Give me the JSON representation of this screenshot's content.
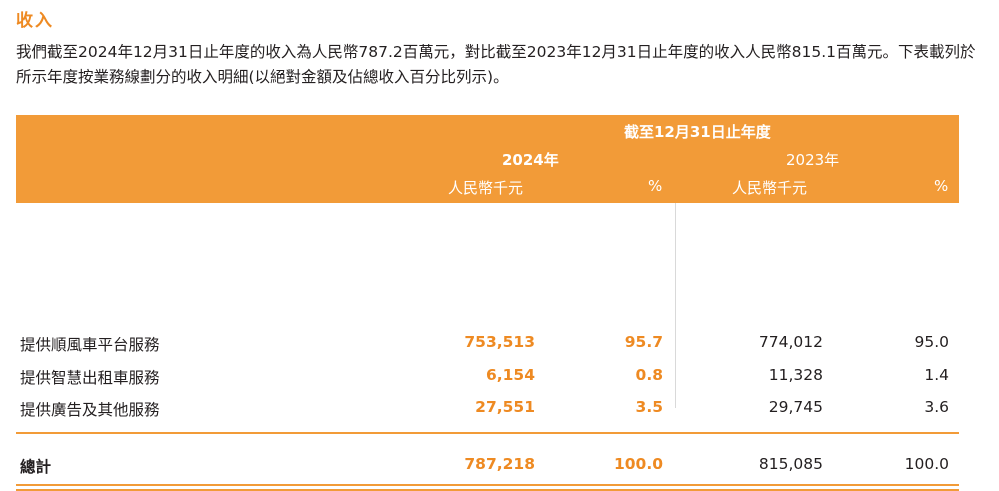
{
  "section": {
    "title": "收入",
    "intro": "我們截至2024年12月31日止年度的收入為人民幣787.2百萬元，對比截至2023年12月31日止年度的收入人民幣815.1百萬元。下表載列於所示年度按業務線劃分的收入明細(以絕對金額及佔總收入百分比列示)。"
  },
  "table": {
    "period_header": "截至12月31日止年度",
    "year_2024": "2024年",
    "year_2023": "2023年",
    "col_amount_2024": "人民幣千元",
    "col_pct_2024": "%",
    "col_amount_2023": "人民幣千元",
    "col_pct_2023": "%",
    "rows": [
      {
        "label": "提供順風車平台服務",
        "amt2024": "753,513",
        "pct2024": "95.7",
        "amt2023": "774,012",
        "pct2023": "95.0"
      },
      {
        "label": "提供智慧出租車服務",
        "amt2024": "6,154",
        "pct2024": "0.8",
        "amt2023": "11,328",
        "pct2023": "1.4"
      },
      {
        "label": "提供廣告及其他服務",
        "amt2024": "27,551",
        "pct2024": "3.5",
        "amt2023": "29,745",
        "pct2023": "3.6"
      }
    ],
    "total": {
      "label": "總計",
      "amt2024": "787,218",
      "pct2024": "100.0",
      "amt2023": "815,085",
      "pct2023": "100.0"
    }
  },
  "colors": {
    "accent": "#ee8a22",
    "header_bg": "#f29b38"
  }
}
